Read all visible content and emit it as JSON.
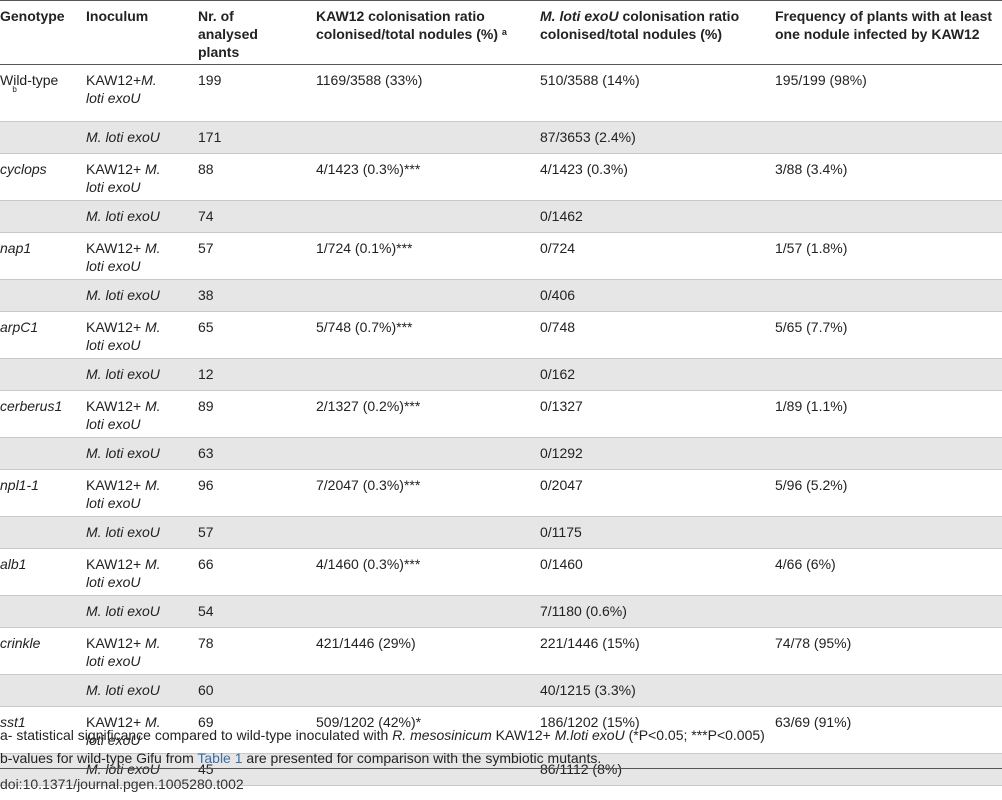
{
  "header": {
    "genotype": "Genotype",
    "inoculum": "Inoculum",
    "nr_line1": "Nr. of",
    "nr_line2": "analysed",
    "nr_line3": "plants",
    "kaw_line1": "KAW12 colonisation ratio",
    "kaw_line2": "colonised/total nodules (%)",
    "kaw_sup": "a",
    "mloti_italic": "M. loti exoU",
    "mloti_rest": " colonisation ratio",
    "mloti_line2": "colonised/total nodules (%)",
    "freq_line1": "Frequency of plants with at least",
    "freq_line2": "one nodule infected by KAW12"
  },
  "rows": [
    {
      "genotype": "Wild-type",
      "sup": "b",
      "inoc_plain": "KAW12+",
      "inoc_italic": "M.",
      "inoc_line2": "loti exoU",
      "nr": "199",
      "kaw": "1169/3588 (33%)",
      "mloti": "510/3588 (14%)",
      "freq": "195/199 (98%)"
    },
    {
      "genotype": "",
      "inoc_italic_full": "M. loti exoU",
      "nr": "171",
      "kaw": "",
      "mloti": "87/3653 (2.4%)",
      "freq": ""
    },
    {
      "genotype": "cyclops",
      "inoc_plain": "KAW12+",
      "inoc_italic": "M.",
      "inoc_line2": "loti exoU",
      "nr": "88",
      "kaw": "4/1423 (0.3%)***",
      "mloti": "4/1423 (0.3%)",
      "freq": "3/88 (3.4%)"
    },
    {
      "genotype": "",
      "inoc_italic_full": "M. loti exoU",
      "nr": "74",
      "kaw": "",
      "mloti": "0/1462",
      "freq": ""
    },
    {
      "genotype": "nap1",
      "inoc_plain": "KAW12+",
      "inoc_italic": "M.",
      "inoc_line2": "loti exoU",
      "nr": "57",
      "kaw": "1/724 (0.1%)***",
      "mloti": "0/724",
      "freq": "1/57 (1.8%)"
    },
    {
      "genotype": "",
      "inoc_italic_full": "M. loti exoU",
      "nr": "38",
      "kaw": "",
      "mloti": "0/406",
      "freq": ""
    },
    {
      "genotype": "arpC1",
      "inoc_plain": "KAW12+",
      "inoc_italic": "M.",
      "inoc_line2": "loti exoU",
      "nr": "65",
      "kaw": "5/748 (0.7%)***",
      "mloti": "0/748",
      "freq": "5/65 (7.7%)"
    },
    {
      "genotype": "",
      "inoc_italic_full": "M. loti exoU",
      "nr": "12",
      "kaw": "",
      "mloti": "0/162",
      "freq": ""
    },
    {
      "genotype": "cerberus1",
      "inoc_plain": "KAW12+",
      "inoc_italic": "M.",
      "inoc_line2": "loti exoU",
      "nr": "89",
      "kaw": "2/1327 (0.2%)***",
      "mloti": "0/1327",
      "freq": "1/89 (1.1%)"
    },
    {
      "genotype": "",
      "inoc_italic_full": "M. loti exoU",
      "nr": "63",
      "kaw": "",
      "mloti": "0/1292",
      "freq": ""
    },
    {
      "genotype": "npl1-1",
      "inoc_plain": "KAW12+",
      "inoc_italic": "M.",
      "inoc_line2": "loti exoU",
      "nr": "96",
      "kaw": "7/2047 (0.3%)***",
      "mloti": "0/2047",
      "freq": "5/96 (5.2%)"
    },
    {
      "genotype": "",
      "inoc_italic_full": "M. loti exoU",
      "nr": "57",
      "kaw": "",
      "mloti": "0/1175",
      "freq": ""
    },
    {
      "genotype": "alb1",
      "inoc_plain": "KAW12+",
      "inoc_italic": "M.",
      "inoc_line2": "loti exoU",
      "nr": "66",
      "kaw": "4/1460 (0.3%)***",
      "mloti": "0/1460",
      "freq": "4/66 (6%)"
    },
    {
      "genotype": "",
      "inoc_italic_full": "M. loti exoU",
      "nr": "54",
      "kaw": "",
      "mloti": "7/1180 (0.6%)",
      "freq": ""
    },
    {
      "genotype": "crinkle",
      "inoc_plain": "KAW12+",
      "inoc_italic": "M.",
      "inoc_line2": "loti exoU",
      "nr": "78",
      "kaw": "421/1446 (29%)",
      "mloti": "221/1446 (15%)",
      "freq": "74/78 (95%)"
    },
    {
      "genotype": "",
      "inoc_italic_full": "M. loti exoU",
      "nr": "60",
      "kaw": "",
      "mloti": "40/1215 (3.3%)",
      "freq": ""
    },
    {
      "genotype": "sst1",
      "inoc_plain": "KAW12+",
      "inoc_italic": "M.",
      "inoc_line2": "loti exoU",
      "nr": "69",
      "kaw": "509/1202 (42%)*",
      "mloti": "186/1202 (15%)",
      "freq": "63/69 (91%)"
    },
    {
      "genotype": "",
      "inoc_italic_full": "M. loti exoU",
      "nr": "45",
      "kaw": "",
      "mloti": "86/1112 (8%)",
      "freq": ""
    }
  ],
  "footnotes": {
    "a_pre": "a- statistical significance compared to wild-type inoculated with ",
    "a_italic1": "R. mesosinicum",
    "a_mid": " KAW12+ ",
    "a_italic2": "M.loti exoU",
    "a_post": " (*P<0.05; ***P<0.005)",
    "b_pre": "b-values for wild-type Gifu from ",
    "b_link": "Table 1",
    "b_post": " are presented for comparison with the symbiotic mutants."
  },
  "doi": "doi:10.1371/journal.pgen.1005280.t002"
}
